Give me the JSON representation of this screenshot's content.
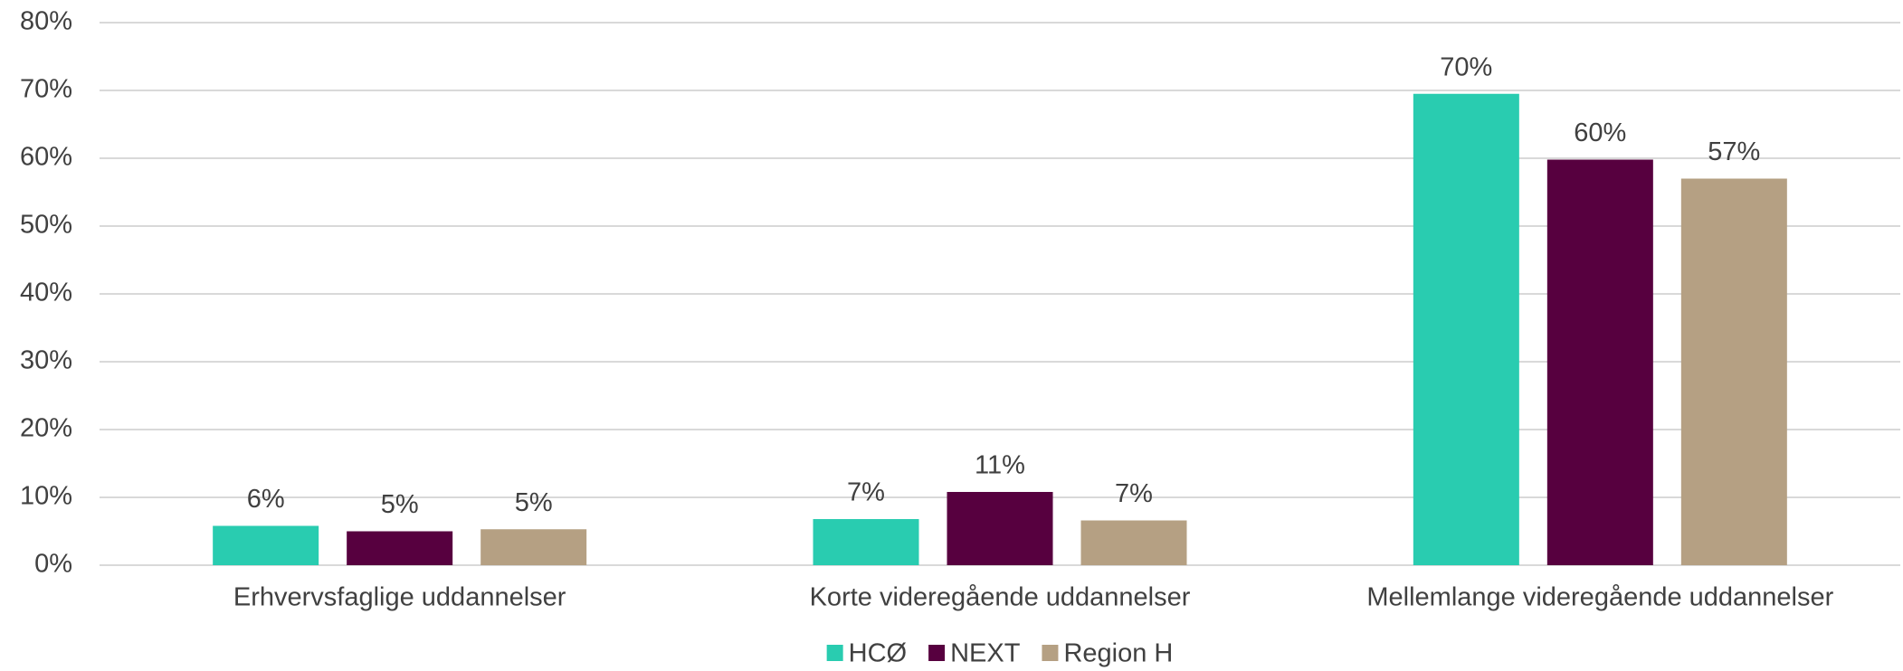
{
  "chart_data": {
    "type": "bar",
    "categories": [
      "Erhvervsfaglige uddannelser",
      "Korte videregående uddannelser",
      "Mellemlange videregående uddannelser"
    ],
    "series": [
      {
        "name": "HCØ",
        "color": "#29ccb0",
        "values": [
          5.8,
          6.8,
          69.5
        ],
        "value_labels": [
          "6%",
          "7%",
          "70%"
        ]
      },
      {
        "name": "NEXT",
        "color": "#57003f",
        "values": [
          5.0,
          10.8,
          59.8
        ],
        "value_labels": [
          "5%",
          "11%",
          "60%"
        ]
      },
      {
        "name": "Region H",
        "color": "#b5a083",
        "values": [
          5.3,
          6.6,
          57.0
        ],
        "value_labels": [
          "5%",
          "7%",
          "57%"
        ]
      }
    ],
    "ylim": [
      0,
      80
    ],
    "yticks": [
      {
        "value": 0,
        "label": "0%"
      },
      {
        "value": 10,
        "label": "10%"
      },
      {
        "value": 20,
        "label": "20%"
      },
      {
        "value": 30,
        "label": "30%"
      },
      {
        "value": 40,
        "label": "40%"
      },
      {
        "value": 50,
        "label": "50%"
      },
      {
        "value": 60,
        "label": "60%"
      },
      {
        "value": 70,
        "label": "70%"
      },
      {
        "value": 80,
        "label": "80%"
      }
    ],
    "grid": true,
    "legend": "bottom"
  }
}
